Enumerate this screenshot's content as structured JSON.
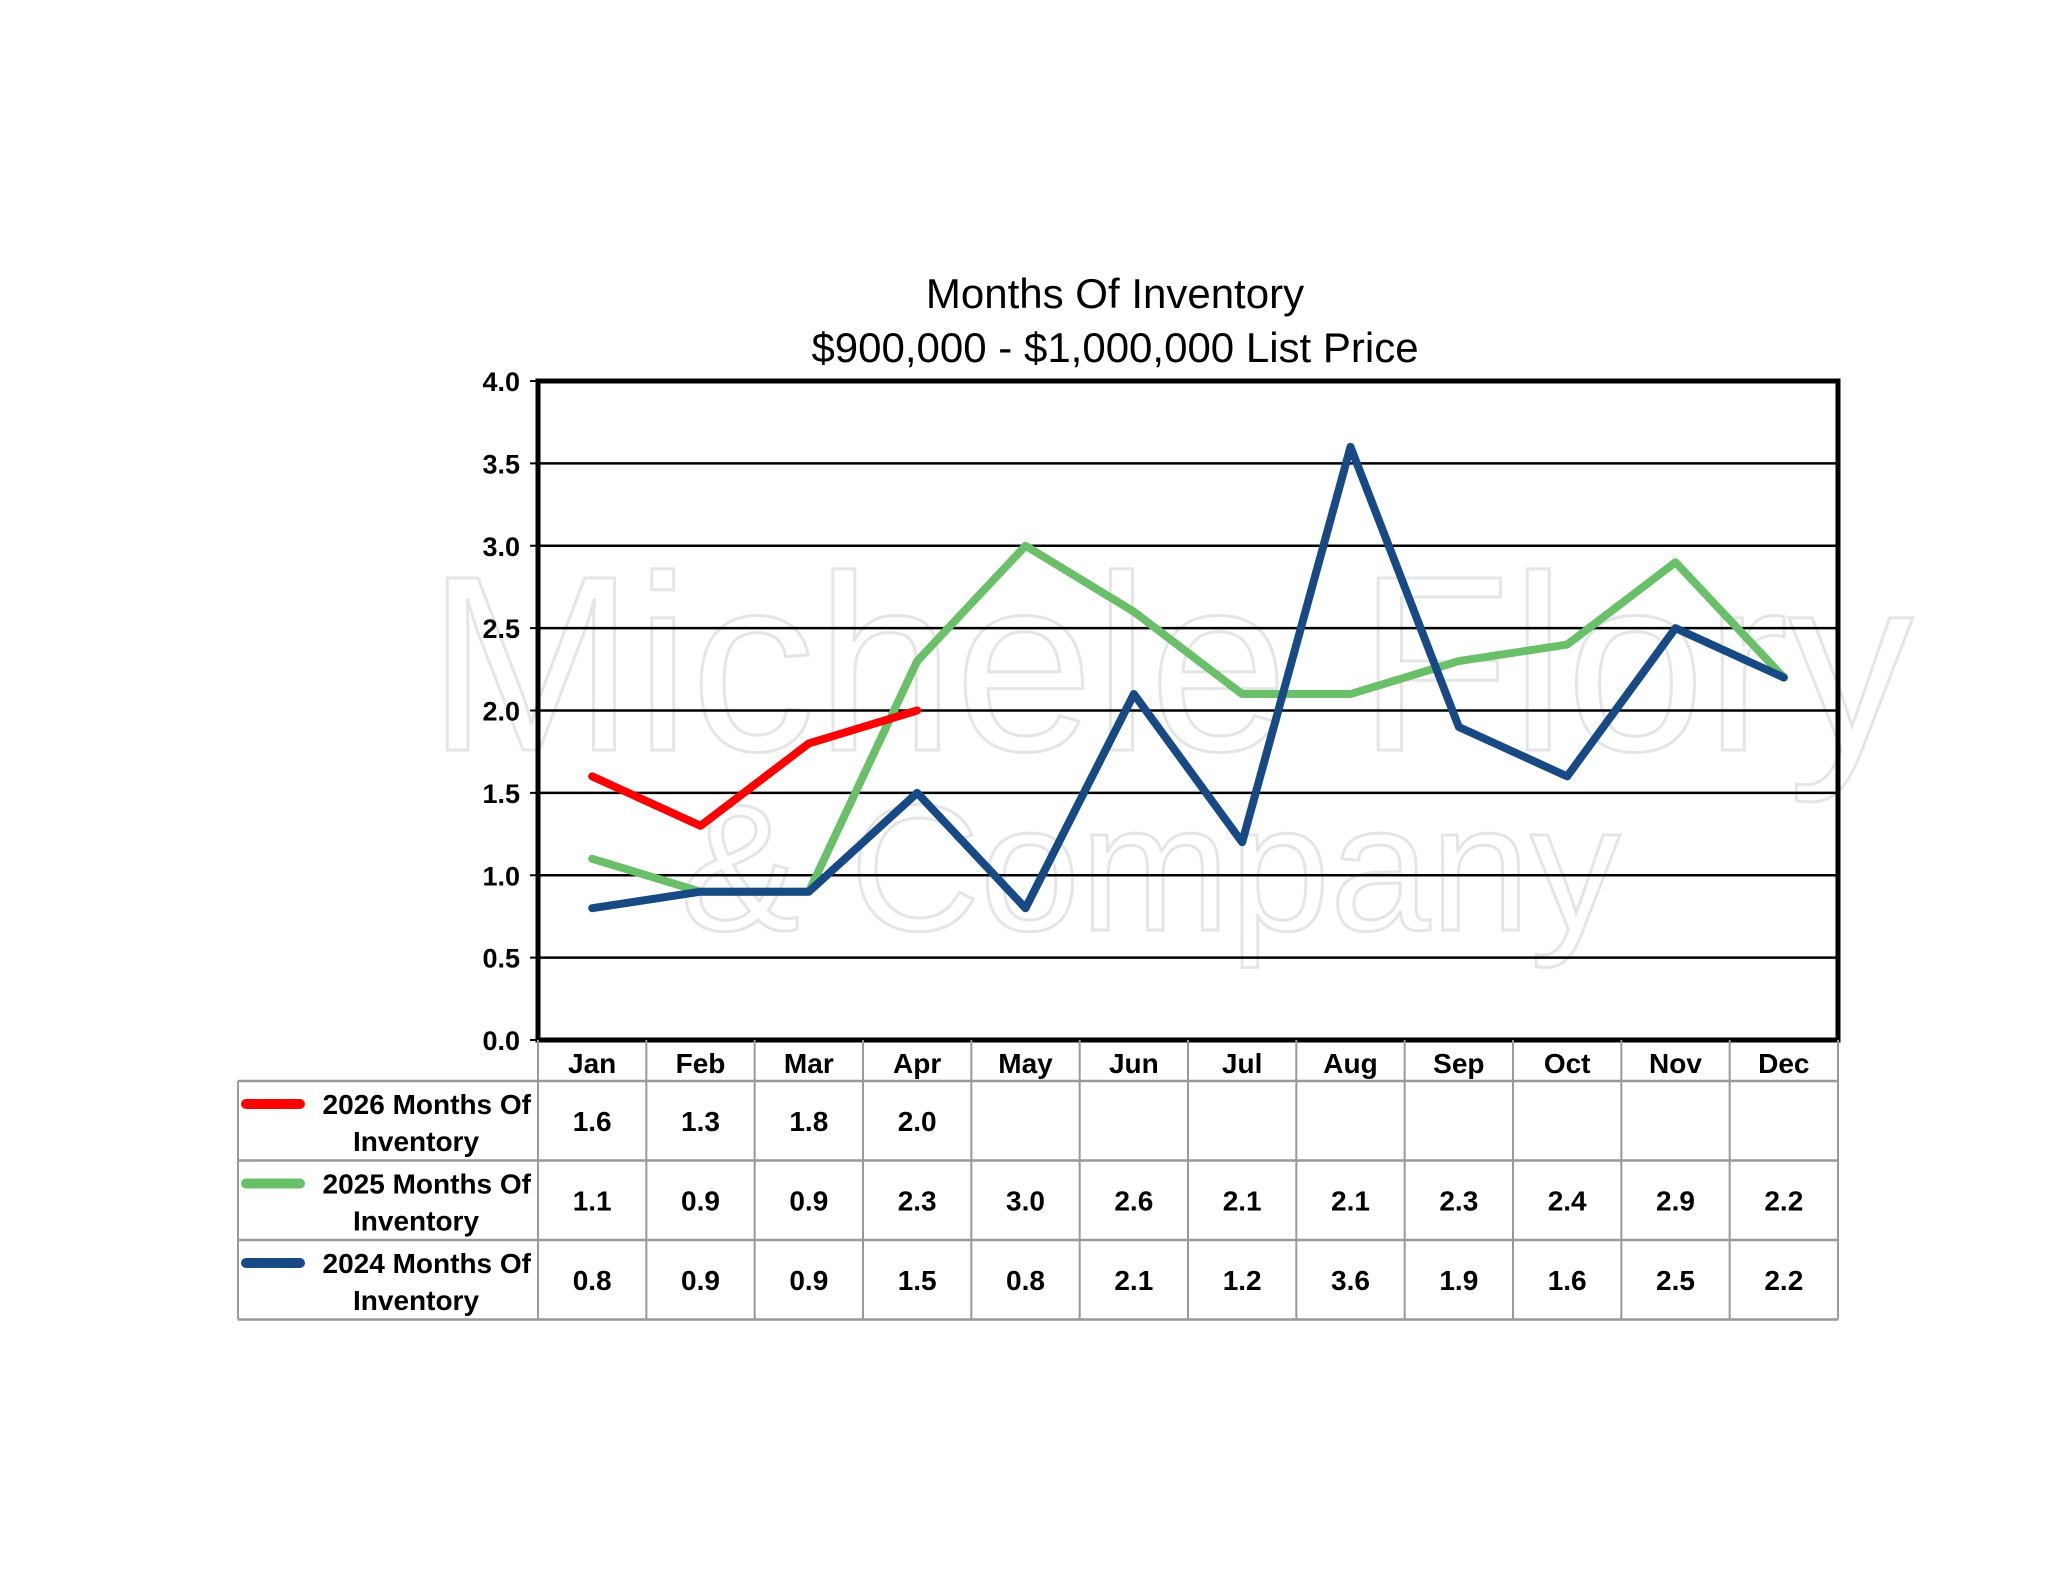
{
  "chart_data": {
    "type": "line",
    "title": "Months Of Inventory",
    "subtitle": "$900,000 - $1,000,000 List Price",
    "categories": [
      "Jan",
      "Feb",
      "Mar",
      "Apr",
      "May",
      "Jun",
      "Jul",
      "Aug",
      "Sep",
      "Oct",
      "Nov",
      "Dec"
    ],
    "ylim": [
      0,
      4.0
    ],
    "yticks": [
      "0.0",
      "0.5",
      "1.0",
      "1.5",
      "2.0",
      "2.5",
      "3.0",
      "3.5",
      "4.0"
    ],
    "grid": true,
    "legend": "data-table-bottom",
    "series": [
      {
        "name": "2026 Months Of Inventory",
        "label_line1": "2026 Months Of",
        "label_line2": "Inventory",
        "color": "#ff0000",
        "values": [
          1.6,
          1.3,
          1.8,
          2.0,
          null,
          null,
          null,
          null,
          null,
          null,
          null,
          null
        ]
      },
      {
        "name": "2025 Months Of Inventory",
        "label_line1": "2025 Months Of",
        "label_line2": "Inventory",
        "color": "#6abf69",
        "values": [
          1.1,
          0.9,
          0.9,
          2.3,
          3.0,
          2.6,
          2.1,
          2.1,
          2.3,
          2.4,
          2.9,
          2.2
        ]
      },
      {
        "name": "2024 Months Of Inventory",
        "label_line1": "2024 Months Of",
        "label_line2": "Inventory",
        "color": "#174a85",
        "values": [
          0.8,
          0.9,
          0.9,
          1.5,
          0.8,
          2.1,
          1.2,
          3.6,
          1.9,
          1.6,
          2.5,
          2.2
        ]
      }
    ],
    "watermark": "Michele Flory & Company"
  }
}
